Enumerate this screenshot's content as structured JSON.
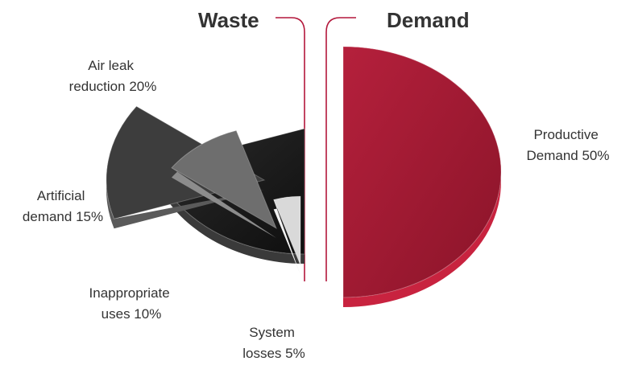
{
  "headings": {
    "left": "Waste",
    "right": "Demand"
  },
  "colors": {
    "divider": "#b3173b",
    "text": "#333333"
  },
  "chart_data": {
    "type": "pie",
    "style": "exploded-3d",
    "title": "",
    "unit": "%",
    "groups": [
      "Waste",
      "Demand"
    ],
    "slices": [
      {
        "label_lines": [
          "Productive",
          "Demand 50%"
        ],
        "value": 50,
        "group": "Demand",
        "color": "#9e1a33",
        "side_color": "#c8233f"
      },
      {
        "label_lines": [
          "Air leak",
          "reduction 20%"
        ],
        "value": 20,
        "group": "Waste",
        "color": "#1c1c1c",
        "side_color": "#3a3a3a"
      },
      {
        "label_lines": [
          "Artificial",
          "demand 15%"
        ],
        "value": 15,
        "group": "Waste",
        "color": "#3d3d3d",
        "side_color": "#5a5a5a"
      },
      {
        "label_lines": [
          "Inappropriate",
          "uses 10%"
        ],
        "value": 10,
        "group": "Waste",
        "color": "#6e6e6e",
        "side_color": "#8c8c8c"
      },
      {
        "label_lines": [
          "System",
          "losses 5%"
        ],
        "value": 5,
        "group": "Waste",
        "color": "#d9d9d9",
        "side_color": "#f2f2f2"
      }
    ]
  }
}
